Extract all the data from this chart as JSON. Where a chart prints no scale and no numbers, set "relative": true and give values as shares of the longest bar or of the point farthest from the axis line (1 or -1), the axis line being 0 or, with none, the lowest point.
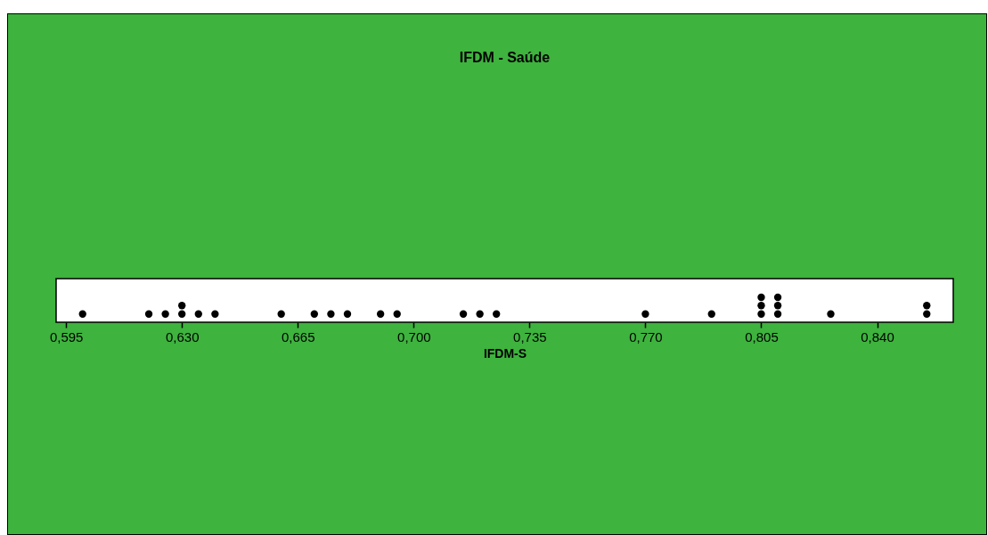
{
  "chart_data": {
    "type": "scatter",
    "title": "IFDM - Saúde",
    "xlabel": "IFDM-S",
    "x": [
      0.6,
      0.62,
      0.625,
      0.63,
      0.63,
      0.635,
      0.64,
      0.66,
      0.67,
      0.675,
      0.68,
      0.69,
      0.695,
      0.715,
      0.72,
      0.725,
      0.77,
      0.79,
      0.805,
      0.805,
      0.805,
      0.81,
      0.81,
      0.81,
      0.826,
      0.855,
      0.855
    ],
    "values": [
      0.33,
      0.33,
      0.33,
      0.33,
      0.67,
      0.33,
      0.33,
      0.33,
      0.33,
      0.33,
      0.33,
      0.33,
      0.33,
      0.33,
      0.33,
      0.33,
      0.33,
      0.33,
      0.33,
      0.67,
      1,
      0.33,
      0.67,
      1,
      0.33,
      0.33,
      0.67
    ],
    "color": "#000000",
    "marker": "circle",
    "relative": true,
    "xlim": [
      0.592,
      0.863
    ],
    "xticks": [
      {
        "value": 0.595,
        "label": "0,595"
      },
      {
        "value": 0.63,
        "label": "0,630"
      },
      {
        "value": 0.665,
        "label": "0,665"
      },
      {
        "value": 0.7,
        "label": "0,700"
      },
      {
        "value": 0.735,
        "label": "0,735"
      },
      {
        "value": 0.77,
        "label": "0,770"
      },
      {
        "value": 0.805,
        "label": "0,805"
      },
      {
        "value": 0.84,
        "label": "0,840"
      }
    ]
  }
}
